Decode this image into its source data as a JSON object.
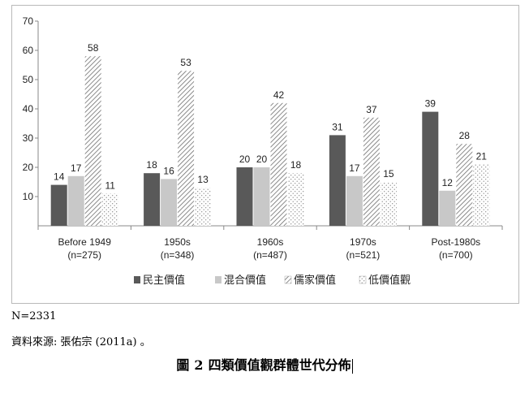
{
  "chart_data": {
    "type": "bar",
    "categories": [
      "Before 1949\n(n=275)",
      "1950s\n(n=348)",
      "1960s\n(n=487)",
      "1970s\n(n=521)",
      "Post-1980s\n(n=700)"
    ],
    "series": [
      {
        "name": "民主價值",
        "values": [
          14,
          18,
          20,
          31,
          39
        ],
        "pattern": "solid",
        "color": "#595959"
      },
      {
        "name": "混合價值",
        "values": [
          17,
          16,
          20,
          17,
          12
        ],
        "pattern": "solid",
        "color": "#c8c8c8"
      },
      {
        "name": "儒家價值",
        "values": [
          58,
          53,
          42,
          37,
          28
        ],
        "pattern": "diagonal-hatch",
        "color": "#7a7a7a"
      },
      {
        "name": "低價值觀",
        "values": [
          11,
          13,
          18,
          15,
          21
        ],
        "pattern": "dots",
        "color": "#9a9a9a"
      }
    ],
    "value_labels": [
      [
        "14",
        "18",
        "20",
        "31",
        "39"
      ],
      [
        "17",
        "16",
        "20",
        "17",
        "12"
      ],
      [
        "58",
        "53",
        "42",
        "37",
        "28"
      ],
      [
        "11",
        "13",
        "18",
        "15",
        "21"
      ]
    ],
    "ylim": [
      0,
      70
    ],
    "yticks": [
      10,
      20,
      30,
      40,
      50,
      60,
      70
    ],
    "grid": false,
    "legend_position": "bottom",
    "title": "",
    "xlabel": "",
    "ylabel": ""
  },
  "notes": {
    "n": "N=2331",
    "source": "資料來源:  張佑宗  (2011a)  。"
  },
  "caption": {
    "prefix": "圖",
    "number": "2",
    "text": "四類價值觀群體世代分佈"
  }
}
